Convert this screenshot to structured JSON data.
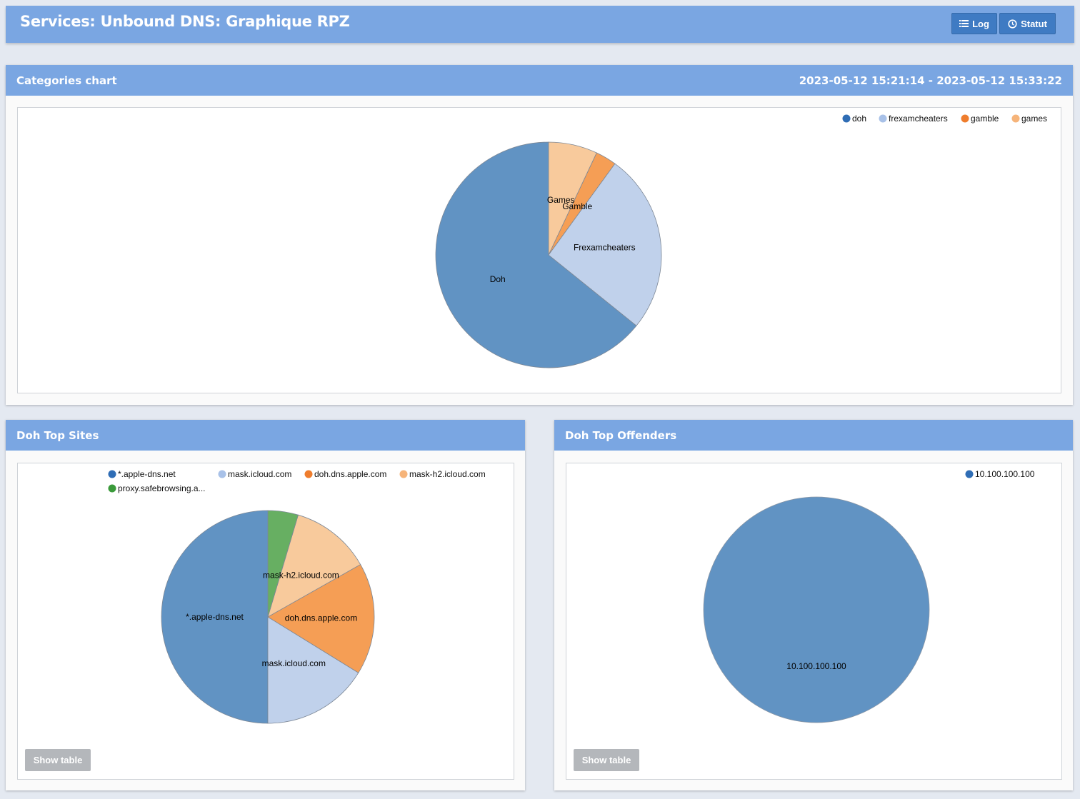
{
  "page": {
    "title": "Services: Unbound DNS: Graphique RPZ",
    "buttons": [
      {
        "label": "Log",
        "icon": "list-icon"
      },
      {
        "label": "Statut",
        "icon": "clock-icon"
      }
    ]
  },
  "panels": {
    "categories": {
      "title": "Categories chart",
      "range": "2023-05-12 15:21:14 - 2023-05-12 15:33:22"
    },
    "sites": {
      "title": "Doh Top Sites",
      "show_table": "Show table"
    },
    "offenders": {
      "title": "Doh Top Offenders",
      "show_table": "Show table"
    }
  },
  "colors": {
    "dark_blue": "#2f6db5",
    "light_blue": "#a8c1e8",
    "orange": "#ef7d2d",
    "light_orange": "#f6b47a",
    "green": "#3a9a3a",
    "header": "#7aa6e2",
    "button": "#3f7bc3"
  },
  "chart_data": [
    {
      "type": "pie",
      "title": "Categories chart",
      "legend_position": "top-right",
      "series": [
        {
          "name": "doh",
          "label": "Doh",
          "value": 64.2,
          "color": "#6193c3",
          "legend_color": "#2f6db5"
        },
        {
          "name": "frexamcheaters",
          "label": "Frexamcheaters",
          "value": 25.8,
          "color": "#c0d1eb",
          "legend_color": "#a8c1e8"
        },
        {
          "name": "gamble",
          "label": "Gamble",
          "value": 3.0,
          "color": "#f59e55",
          "legend_color": "#ef7d2d"
        },
        {
          "name": "games",
          "label": "Games",
          "value": 7.0,
          "color": "#f8ca9c",
          "legend_color": "#f6b47a"
        }
      ]
    },
    {
      "type": "pie",
      "title": "Doh Top Sites",
      "legend_position": "top",
      "series": [
        {
          "name": "*.apple-dns.net",
          "label": "*.apple-dns.net",
          "value": 50.0,
          "color": "#6193c3",
          "legend_color": "#2f6db5"
        },
        {
          "name": "mask.icloud.com",
          "label": "mask.icloud.com",
          "value": 16.2,
          "color": "#c0d1eb",
          "legend_color": "#a8c1e8"
        },
        {
          "name": "doh.dns.apple.com",
          "label": "doh.dns.apple.com",
          "value": 17.0,
          "color": "#f59e55",
          "legend_color": "#ef7d2d"
        },
        {
          "name": "mask-h2.icloud.com",
          "label": "mask-h2.icloud.com",
          "value": 12.2,
          "color": "#f8ca9c",
          "legend_color": "#f6b47a"
        },
        {
          "name": "proxy.safebrowsing.a...",
          "label": "",
          "value": 4.6,
          "color": "#67af62",
          "legend_color": "#3a9a3a"
        }
      ]
    },
    {
      "type": "pie",
      "title": "Doh Top Offenders",
      "legend_position": "top-right",
      "series": [
        {
          "name": "10.100.100.100",
          "label": "10.100.100.100",
          "value": 100,
          "color": "#6193c3",
          "legend_color": "#2f6db5"
        }
      ]
    }
  ]
}
